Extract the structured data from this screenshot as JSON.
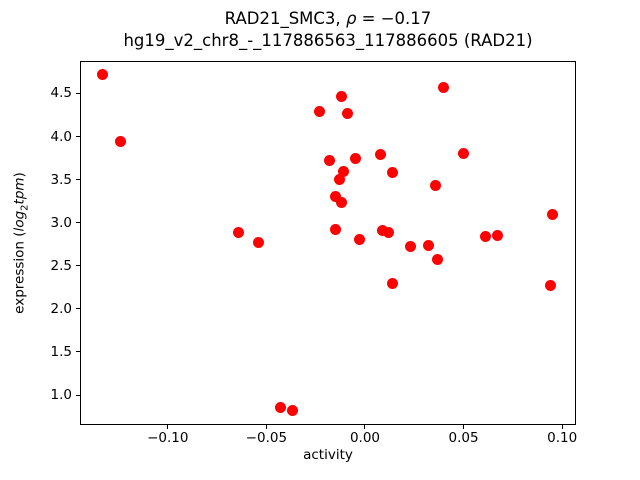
{
  "title": {
    "line1_prefix": "RAD21_SMC3, ",
    "rho_symbol": "ρ",
    "rho_value": " = −0.17",
    "line2": "hg19_v2_chr8_-_117886563_117886605 (RAD21)"
  },
  "ylabel_parts": {
    "prefix": "expression (",
    "log": "log",
    "sub": "2",
    "unit": "tpm",
    "suffix": ")"
  },
  "chart_data": {
    "type": "scatter",
    "title": "RAD21_SMC3, ρ = −0.17",
    "subtitle": "hg19_v2_chr8_-_117886563_117886605 (RAD21)",
    "xlabel": "activity",
    "ylabel": "expression (log2tpm)",
    "marker_color": "#ff0000",
    "marker_diameter_px": 11,
    "grid": false,
    "legend": "none",
    "xlim": [
      -0.1445,
      0.107
    ],
    "ylim": [
      0.652,
      4.877
    ],
    "x_ticks": [
      -0.1,
      -0.05,
      0.0,
      0.05,
      0.1
    ],
    "x_tick_labels": [
      "−0.10",
      "−0.05",
      "0.00",
      "0.05",
      "0.10"
    ],
    "y_ticks": [
      1.0,
      1.5,
      2.0,
      2.5,
      3.0,
      3.5,
      4.0,
      4.5
    ],
    "y_tick_labels": [
      "1.0",
      "1.5",
      "2.0",
      "2.5",
      "3.0",
      "3.5",
      "4.0",
      "4.5"
    ],
    "points": [
      [
        -0.133,
        4.72
      ],
      [
        -0.124,
        3.94
      ],
      [
        -0.064,
        2.89
      ],
      [
        -0.054,
        2.77
      ],
      [
        -0.043,
        0.86
      ],
      [
        -0.037,
        0.82
      ],
      [
        -0.023,
        4.29
      ],
      [
        -0.012,
        4.47
      ],
      [
        -0.009,
        4.27
      ],
      [
        -0.018,
        3.72
      ],
      [
        -0.005,
        3.75
      ],
      [
        0.008,
        3.79
      ],
      [
        -0.011,
        3.6
      ],
      [
        -0.013,
        3.5
      ],
      [
        0.014,
        3.58
      ],
      [
        -0.015,
        3.3
      ],
      [
        -0.012,
        3.24
      ],
      [
        0.036,
        3.43
      ],
      [
        0.05,
        3.8
      ],
      [
        0.04,
        4.57
      ],
      [
        0.095,
        3.1
      ],
      [
        -0.015,
        2.92
      ],
      [
        -0.003,
        2.81
      ],
      [
        0.009,
        2.91
      ],
      [
        0.012,
        2.89
      ],
      [
        0.023,
        2.72
      ],
      [
        0.032,
        2.73
      ],
      [
        0.037,
        2.57
      ],
      [
        0.014,
        2.3
      ],
      [
        0.061,
        2.84
      ],
      [
        0.067,
        2.85
      ],
      [
        0.094,
        2.27
      ]
    ]
  }
}
